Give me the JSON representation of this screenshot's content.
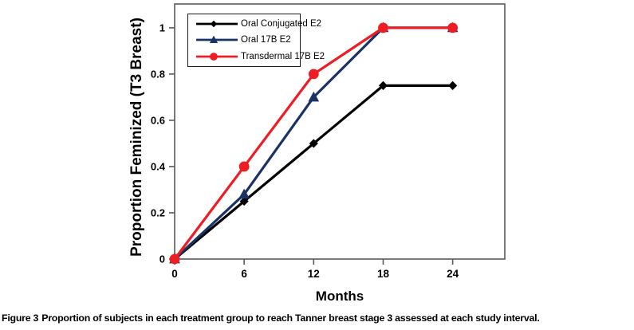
{
  "figure": {
    "caption_label": "Figure 3",
    "caption_text": "Proportion of subjects in each treatment group to reach Tanner breast stage 3 assessed at each study interval."
  },
  "chart_data": {
    "type": "line",
    "title": "",
    "xlabel": "Months",
    "ylabel": "Proportion Feminized (T3 Breast)",
    "x": [
      0,
      6,
      12,
      18,
      24
    ],
    "series": [
      {
        "name": "Oral Conjugated E2",
        "color": "#000000",
        "marker": "diamond",
        "values": [
          0,
          0.25,
          0.5,
          0.75,
          0.75
        ]
      },
      {
        "name": "Oral 17B E2",
        "color": "#1A3365",
        "marker": "triangle",
        "values": [
          0,
          0.28,
          0.7,
          1,
          1
        ]
      },
      {
        "name": "Transdermal 17B E2",
        "color": "#EE1C23",
        "marker": "circle",
        "values": [
          0,
          0.4,
          0.8,
          1,
          1
        ]
      }
    ],
    "xticks": [
      0,
      6,
      12,
      18,
      24
    ],
    "xtick_labels": [
      "0",
      "6",
      "12",
      "18",
      "24"
    ],
    "yticks": [
      0,
      0.2,
      0.4,
      0.6,
      0.8,
      1
    ],
    "ytick_labels": [
      "0",
      "0.2",
      "0.4",
      "0.6",
      "0.8",
      "1"
    ],
    "xlim": [
      0,
      28.5
    ],
    "ylim": [
      0,
      1.103
    ],
    "grid": false,
    "legend_position": "top-left",
    "axis_color": "#595959"
  }
}
